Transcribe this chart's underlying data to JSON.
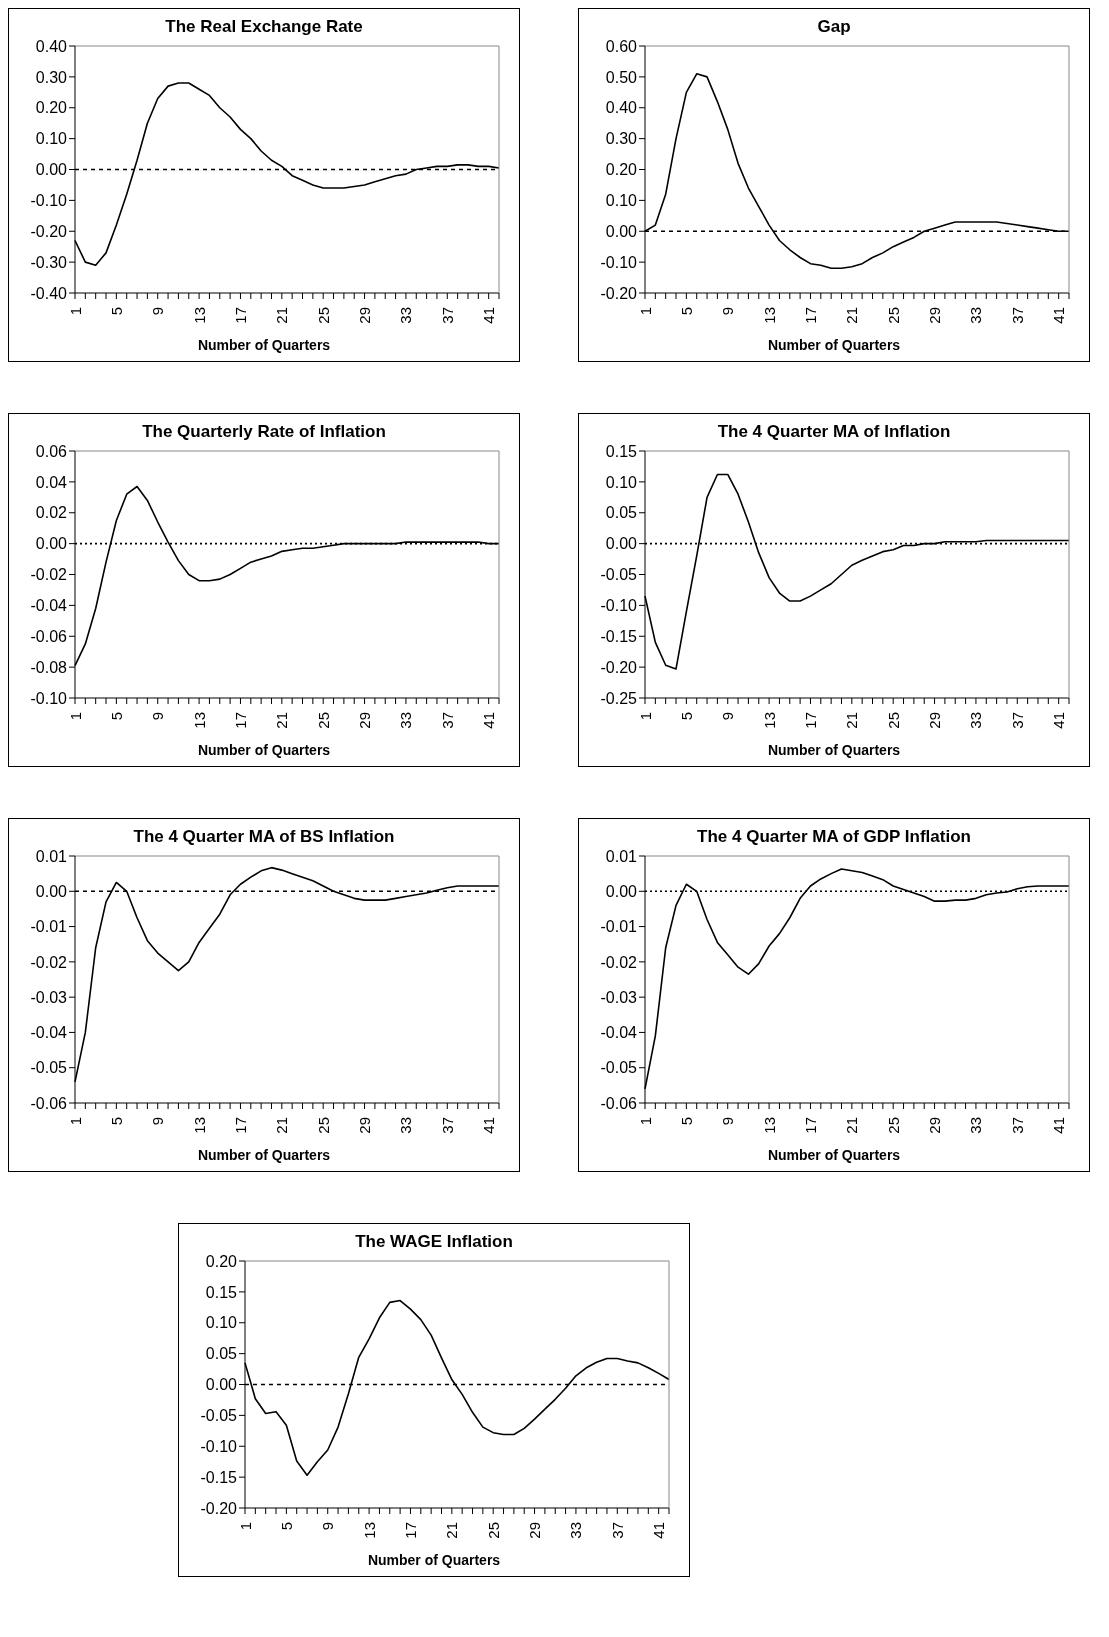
{
  "chart_data": [
    {
      "type": "line",
      "title": "The Real Exchange Rate",
      "xlabel": "Number of Quarters",
      "categories": [
        "1",
        null,
        null,
        null,
        "5",
        null,
        null,
        null,
        "9",
        null,
        null,
        null,
        "13",
        null,
        null,
        null,
        "17",
        null,
        null,
        null,
        "21",
        null,
        null,
        null,
        "25",
        null,
        null,
        null,
        "29",
        null,
        null,
        null,
        "33",
        null,
        null,
        null,
        "37",
        null,
        null,
        null,
        "41",
        null
      ],
      "series": [
        {
          "color": "#000000",
          "values": [
            -0.23,
            -0.3,
            -0.31,
            -0.27,
            -0.18,
            -0.08,
            0.03,
            0.15,
            0.23,
            0.27,
            0.28,
            0.28,
            0.26,
            0.24,
            0.2,
            0.17,
            0.13,
            0.1,
            0.06,
            0.03,
            0.01,
            -0.02,
            -0.035,
            -0.05,
            -0.06,
            -0.06,
            -0.06,
            -0.055,
            -0.05,
            -0.04,
            -0.03,
            -0.02,
            -0.015,
            0.0,
            0.005,
            0.01,
            0.01,
            0.015,
            0.015,
            0.01,
            0.01,
            0.005
          ]
        }
      ],
      "ylim": [
        -0.4,
        0.4
      ],
      "yticks": [
        {
          "value": -0.4,
          "label": "-0.40"
        },
        {
          "value": -0.3,
          "label": "-0.30"
        },
        {
          "value": -0.2,
          "label": "-0.20"
        },
        {
          "value": -0.1,
          "label": "-0.10"
        },
        {
          "value": 0,
          "label": "0.00"
        },
        {
          "value": 0.1,
          "label": "0.10"
        },
        {
          "value": 0.2,
          "label": "0.20"
        },
        {
          "value": 0.3,
          "label": "0.30"
        },
        {
          "value": 0.4,
          "label": "0.40"
        }
      ],
      "ref_lines": [
        {
          "axis": "y",
          "value": 0,
          "line_style": "dashed",
          "color": "#000000"
        }
      ],
      "marker": "none",
      "line_style": "solid"
    },
    {
      "type": "line",
      "title": "Gap",
      "xlabel": "Number of Quarters",
      "categories": [
        "1",
        null,
        null,
        null,
        "5",
        null,
        null,
        null,
        "9",
        null,
        null,
        null,
        "13",
        null,
        null,
        null,
        "17",
        null,
        null,
        null,
        "21",
        null,
        null,
        null,
        "25",
        null,
        null,
        null,
        "29",
        null,
        null,
        null,
        "33",
        null,
        null,
        null,
        "37",
        null,
        null,
        null,
        "41",
        null
      ],
      "series": [
        {
          "color": "#000000",
          "values": [
            0.0,
            0.02,
            0.12,
            0.3,
            0.45,
            0.51,
            0.5,
            0.42,
            0.33,
            0.22,
            0.14,
            0.08,
            0.02,
            -0.03,
            -0.06,
            -0.085,
            -0.105,
            -0.11,
            -0.12,
            -0.12,
            -0.115,
            -0.105,
            -0.085,
            -0.07,
            -0.05,
            -0.035,
            -0.02,
            0.0,
            0.01,
            0.02,
            0.03,
            0.03,
            0.03,
            0.03,
            0.03,
            0.025,
            0.02,
            0.015,
            0.01,
            0.005,
            0.0,
            0.0
          ]
        }
      ],
      "ylim": [
        -0.2,
        0.6
      ],
      "yticks": [
        {
          "value": -0.2,
          "label": "-0.20"
        },
        {
          "value": -0.1,
          "label": "-0.10"
        },
        {
          "value": 0,
          "label": "0.00"
        },
        {
          "value": 0.1,
          "label": "0.10"
        },
        {
          "value": 0.2,
          "label": "0.20"
        },
        {
          "value": 0.3,
          "label": "0.30"
        },
        {
          "value": 0.4,
          "label": "0.40"
        },
        {
          "value": 0.5,
          "label": "0.50"
        },
        {
          "value": 0.6,
          "label": "0.60"
        }
      ],
      "ref_lines": [
        {
          "axis": "y",
          "value": 0,
          "line_style": "dashed",
          "color": "#000000"
        }
      ],
      "marker": "none",
      "line_style": "solid"
    },
    {
      "type": "line",
      "title": "The Quarterly Rate of Inflation",
      "xlabel": "Number of Quarters",
      "categories": [
        "1",
        null,
        null,
        null,
        "5",
        null,
        null,
        null,
        "9",
        null,
        null,
        null,
        "13",
        null,
        null,
        null,
        "17",
        null,
        null,
        null,
        "21",
        null,
        null,
        null,
        "25",
        null,
        null,
        null,
        "29",
        null,
        null,
        null,
        "33",
        null,
        null,
        null,
        "37",
        null,
        null,
        null,
        "41",
        null
      ],
      "series": [
        {
          "color": "#000000",
          "values": [
            -0.079,
            -0.065,
            -0.042,
            -0.012,
            0.015,
            0.032,
            0.037,
            0.028,
            0.014,
            0.001,
            -0.011,
            -0.02,
            -0.024,
            -0.024,
            -0.023,
            -0.02,
            -0.016,
            -0.012,
            -0.01,
            -0.008,
            -0.005,
            -0.004,
            -0.003,
            -0.003,
            -0.002,
            -0.001,
            0.0,
            0.0,
            0.0,
            0.0,
            0.0,
            0.0,
            0.001,
            0.001,
            0.001,
            0.001,
            0.001,
            0.001,
            0.001,
            0.001,
            0.0,
            0.0
          ]
        }
      ],
      "ylim": [
        -0.1,
        0.06
      ],
      "yticks": [
        {
          "value": -0.1,
          "label": "-0.10"
        },
        {
          "value": -0.08,
          "label": "-0.08"
        },
        {
          "value": -0.06,
          "label": "-0.06"
        },
        {
          "value": -0.04,
          "label": "-0.04"
        },
        {
          "value": -0.02,
          "label": "-0.02"
        },
        {
          "value": 0,
          "label": "0.00"
        },
        {
          "value": 0.02,
          "label": "0.02"
        },
        {
          "value": 0.04,
          "label": "0.04"
        },
        {
          "value": 0.06,
          "label": "0.06"
        }
      ],
      "ref_lines": [
        {
          "axis": "y",
          "value": 0,
          "line_style": "dotted",
          "color": "#000000"
        }
      ],
      "marker": "none",
      "line_style": "solid"
    },
    {
      "type": "line",
      "title": "The 4 Quarter MA of Inflation",
      "xlabel": "Number of Quarters",
      "categories": [
        "1",
        null,
        null,
        null,
        "5",
        null,
        null,
        null,
        "9",
        null,
        null,
        null,
        "13",
        null,
        null,
        null,
        "17",
        null,
        null,
        null,
        "21",
        null,
        null,
        null,
        "25",
        null,
        null,
        null,
        "29",
        null,
        null,
        null,
        "33",
        null,
        null,
        null,
        "37",
        null,
        null,
        null,
        "41",
        null
      ],
      "series": [
        {
          "color": "#000000",
          "values": [
            -0.085,
            -0.16,
            -0.197,
            -0.203,
            -0.11,
            -0.02,
            0.075,
            0.112,
            0.112,
            0.08,
            0.035,
            -0.015,
            -0.055,
            -0.08,
            -0.093,
            -0.093,
            -0.085,
            -0.075,
            -0.065,
            -0.05,
            -0.035,
            -0.027,
            -0.02,
            -0.013,
            -0.01,
            -0.003,
            -0.003,
            0.0,
            0.0,
            0.003,
            0.003,
            0.003,
            0.003,
            0.005,
            0.005,
            0.005,
            0.005,
            0.005,
            0.005,
            0.005,
            0.005,
            0.005
          ]
        }
      ],
      "ylim": [
        -0.25,
        0.15
      ],
      "yticks": [
        {
          "value": -0.25,
          "label": "-0.25"
        },
        {
          "value": -0.2,
          "label": "-0.20"
        },
        {
          "value": -0.15,
          "label": "-0.15"
        },
        {
          "value": -0.1,
          "label": "-0.10"
        },
        {
          "value": -0.05,
          "label": "-0.05"
        },
        {
          "value": 0,
          "label": "0.00"
        },
        {
          "value": 0.05,
          "label": "0.05"
        },
        {
          "value": 0.1,
          "label": "0.10"
        },
        {
          "value": 0.15,
          "label": "0.15"
        }
      ],
      "ref_lines": [
        {
          "axis": "y",
          "value": 0,
          "line_style": "dotted",
          "color": "#000000"
        }
      ],
      "marker": "none",
      "line_style": "solid"
    },
    {
      "type": "line",
      "title": "The 4 Quarter MA of BS Inflation",
      "xlabel": "Number of Quarters",
      "categories": [
        "1",
        null,
        null,
        null,
        "5",
        null,
        null,
        null,
        "9",
        null,
        null,
        null,
        "13",
        null,
        null,
        null,
        "17",
        null,
        null,
        null,
        "21",
        null,
        null,
        null,
        "25",
        null,
        null,
        null,
        "29",
        null,
        null,
        null,
        "33",
        null,
        null,
        null,
        "37",
        null,
        null,
        null,
        "41",
        null
      ],
      "series": [
        {
          "color": "#000000",
          "values": [
            -0.054,
            -0.04,
            -0.016,
            -0.003,
            0.0025,
            0.0,
            -0.0075,
            -0.014,
            -0.0175,
            -0.02,
            -0.0225,
            -0.02,
            -0.0145,
            -0.0105,
            -0.0065,
            -0.001,
            0.002,
            0.004,
            0.0058,
            0.0067,
            0.006,
            0.005,
            0.004,
            0.003,
            0.0015,
            0.0,
            -0.001,
            -0.002,
            -0.0025,
            -0.0025,
            -0.0025,
            -0.002,
            -0.0015,
            -0.001,
            -0.0005,
            0.0003,
            0.001,
            0.0015,
            0.0015,
            0.0015,
            0.0015,
            0.0015
          ]
        }
      ],
      "ylim": [
        -0.06,
        0.01
      ],
      "yticks": [
        {
          "value": -0.06,
          "label": "-0.06"
        },
        {
          "value": -0.05,
          "label": "-0.05"
        },
        {
          "value": -0.04,
          "label": "-0.04"
        },
        {
          "value": -0.03,
          "label": "-0.03"
        },
        {
          "value": -0.02,
          "label": "-0.02"
        },
        {
          "value": -0.01,
          "label": "-0.01"
        },
        {
          "value": 0,
          "label": "0.00"
        },
        {
          "value": 0.01,
          "label": "0.01"
        }
      ],
      "ref_lines": [
        {
          "axis": "y",
          "value": 0,
          "line_style": "dashed",
          "color": "#000000"
        }
      ],
      "marker": "none",
      "line_style": "solid"
    },
    {
      "type": "line",
      "title": "The 4 Quarter MA of GDP Inflation",
      "xlabel": "Number of Quarters",
      "categories": [
        "1",
        null,
        null,
        null,
        "5",
        null,
        null,
        null,
        "9",
        null,
        null,
        null,
        "13",
        null,
        null,
        null,
        "17",
        null,
        null,
        null,
        "21",
        null,
        null,
        null,
        "25",
        null,
        null,
        null,
        "29",
        null,
        null,
        null,
        "33",
        null,
        null,
        null,
        "37",
        null,
        null,
        null,
        "41",
        null
      ],
      "series": [
        {
          "color": "#000000",
          "values": [
            -0.056,
            -0.041,
            -0.016,
            -0.004,
            0.002,
            0.0,
            -0.008,
            -0.0145,
            -0.018,
            -0.0215,
            -0.0235,
            -0.0205,
            -0.0155,
            -0.012,
            -0.0075,
            -0.002,
            0.0015,
            0.0035,
            0.005,
            0.0063,
            0.0058,
            0.0053,
            0.0043,
            0.0033,
            0.0015,
            0.0005,
            -0.0005,
            -0.0015,
            -0.0028,
            -0.0028,
            -0.0025,
            -0.0025,
            -0.002,
            -0.001,
            -0.0005,
            -0.0002,
            0.0007,
            0.0013,
            0.0015,
            0.0015,
            0.0015,
            0.0015
          ]
        }
      ],
      "ylim": [
        -0.06,
        0.01
      ],
      "yticks": [
        {
          "value": -0.06,
          "label": "-0.06"
        },
        {
          "value": -0.05,
          "label": "-0.05"
        },
        {
          "value": -0.04,
          "label": "-0.04"
        },
        {
          "value": -0.03,
          "label": "-0.03"
        },
        {
          "value": -0.02,
          "label": "-0.02"
        },
        {
          "value": -0.01,
          "label": "-0.01"
        },
        {
          "value": 0,
          "label": "0.00"
        },
        {
          "value": 0.01,
          "label": "0.01"
        }
      ],
      "ref_lines": [
        {
          "axis": "y",
          "value": 0,
          "line_style": "dotted",
          "color": "#000000"
        }
      ],
      "marker": "none",
      "line_style": "solid"
    },
    {
      "type": "line",
      "title": "The WAGE Inflation",
      "xlabel": "Number of Quarters",
      "categories": [
        "1",
        null,
        null,
        null,
        "5",
        null,
        null,
        null,
        "9",
        null,
        null,
        null,
        "13",
        null,
        null,
        null,
        "17",
        null,
        null,
        null,
        "21",
        null,
        null,
        null,
        "25",
        null,
        null,
        null,
        "29",
        null,
        null,
        null,
        "33",
        null,
        null,
        null,
        "37",
        null,
        null,
        null,
        "41",
        null
      ],
      "series": [
        {
          "color": "#000000",
          "values": [
            0.035,
            -0.023,
            -0.047,
            -0.044,
            -0.066,
            -0.124,
            -0.147,
            -0.125,
            -0.106,
            -0.069,
            -0.015,
            0.044,
            0.074,
            0.108,
            0.133,
            0.136,
            0.122,
            0.105,
            0.08,
            0.043,
            0.008,
            -0.016,
            -0.045,
            -0.069,
            -0.078,
            -0.081,
            -0.081,
            -0.071,
            -0.056,
            -0.04,
            -0.024,
            -0.006,
            0.014,
            0.027,
            0.036,
            0.042,
            0.042,
            0.038,
            0.035,
            0.027,
            0.018,
            0.008
          ]
        }
      ],
      "ylim": [
        -0.2,
        0.2
      ],
      "yticks": [
        {
          "value": -0.2,
          "label": "-0.20"
        },
        {
          "value": -0.15,
          "label": "-0.15"
        },
        {
          "value": -0.1,
          "label": "-0.10"
        },
        {
          "value": -0.05,
          "label": "-0.05"
        },
        {
          "value": 0,
          "label": "0.00"
        },
        {
          "value": 0.05,
          "label": "0.05"
        },
        {
          "value": 0.1,
          "label": "0.10"
        },
        {
          "value": 0.15,
          "label": "0.15"
        },
        {
          "value": 0.2,
          "label": "0.20"
        }
      ],
      "ref_lines": [
        {
          "axis": "y",
          "value": 0,
          "line_style": "dashed",
          "color": "#000000"
        }
      ],
      "marker": "none",
      "line_style": "solid"
    }
  ]
}
